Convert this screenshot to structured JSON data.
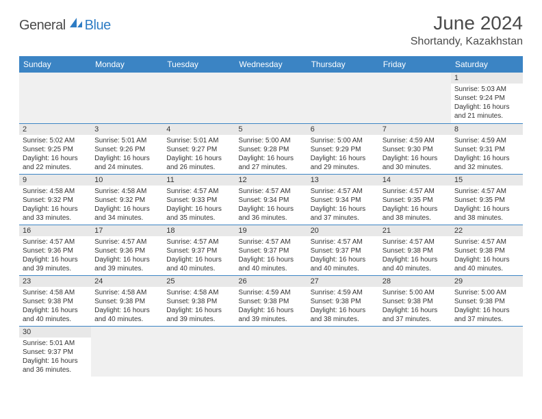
{
  "brand": {
    "part1": "General",
    "part2": "Blue"
  },
  "title": "June 2024",
  "location": "Shortandy, Kazakhstan",
  "colors": {
    "header_bg": "#3b84c4",
    "header_text": "#ffffff",
    "daynum_bg": "#e8e8e8",
    "border": "#3b84c4",
    "brand_gray": "#4a4a4a",
    "brand_blue": "#2e7cc4"
  },
  "weekdays": [
    "Sunday",
    "Monday",
    "Tuesday",
    "Wednesday",
    "Thursday",
    "Friday",
    "Saturday"
  ],
  "calendar": {
    "first_weekday_index": 6,
    "num_days": 30,
    "days": [
      {
        "n": 1,
        "sunrise": "5:03 AM",
        "sunset": "9:24 PM",
        "daylight": "16 hours and 21 minutes."
      },
      {
        "n": 2,
        "sunrise": "5:02 AM",
        "sunset": "9:25 PM",
        "daylight": "16 hours and 22 minutes."
      },
      {
        "n": 3,
        "sunrise": "5:01 AM",
        "sunset": "9:26 PM",
        "daylight": "16 hours and 24 minutes."
      },
      {
        "n": 4,
        "sunrise": "5:01 AM",
        "sunset": "9:27 PM",
        "daylight": "16 hours and 26 minutes."
      },
      {
        "n": 5,
        "sunrise": "5:00 AM",
        "sunset": "9:28 PM",
        "daylight": "16 hours and 27 minutes."
      },
      {
        "n": 6,
        "sunrise": "5:00 AM",
        "sunset": "9:29 PM",
        "daylight": "16 hours and 29 minutes."
      },
      {
        "n": 7,
        "sunrise": "4:59 AM",
        "sunset": "9:30 PM",
        "daylight": "16 hours and 30 minutes."
      },
      {
        "n": 8,
        "sunrise": "4:59 AM",
        "sunset": "9:31 PM",
        "daylight": "16 hours and 32 minutes."
      },
      {
        "n": 9,
        "sunrise": "4:58 AM",
        "sunset": "9:32 PM",
        "daylight": "16 hours and 33 minutes."
      },
      {
        "n": 10,
        "sunrise": "4:58 AM",
        "sunset": "9:32 PM",
        "daylight": "16 hours and 34 minutes."
      },
      {
        "n": 11,
        "sunrise": "4:57 AM",
        "sunset": "9:33 PM",
        "daylight": "16 hours and 35 minutes."
      },
      {
        "n": 12,
        "sunrise": "4:57 AM",
        "sunset": "9:34 PM",
        "daylight": "16 hours and 36 minutes."
      },
      {
        "n": 13,
        "sunrise": "4:57 AM",
        "sunset": "9:34 PM",
        "daylight": "16 hours and 37 minutes."
      },
      {
        "n": 14,
        "sunrise": "4:57 AM",
        "sunset": "9:35 PM",
        "daylight": "16 hours and 38 minutes."
      },
      {
        "n": 15,
        "sunrise": "4:57 AM",
        "sunset": "9:35 PM",
        "daylight": "16 hours and 38 minutes."
      },
      {
        "n": 16,
        "sunrise": "4:57 AM",
        "sunset": "9:36 PM",
        "daylight": "16 hours and 39 minutes."
      },
      {
        "n": 17,
        "sunrise": "4:57 AM",
        "sunset": "9:36 PM",
        "daylight": "16 hours and 39 minutes."
      },
      {
        "n": 18,
        "sunrise": "4:57 AM",
        "sunset": "9:37 PM",
        "daylight": "16 hours and 40 minutes."
      },
      {
        "n": 19,
        "sunrise": "4:57 AM",
        "sunset": "9:37 PM",
        "daylight": "16 hours and 40 minutes."
      },
      {
        "n": 20,
        "sunrise": "4:57 AM",
        "sunset": "9:37 PM",
        "daylight": "16 hours and 40 minutes."
      },
      {
        "n": 21,
        "sunrise": "4:57 AM",
        "sunset": "9:38 PM",
        "daylight": "16 hours and 40 minutes."
      },
      {
        "n": 22,
        "sunrise": "4:57 AM",
        "sunset": "9:38 PM",
        "daylight": "16 hours and 40 minutes."
      },
      {
        "n": 23,
        "sunrise": "4:58 AM",
        "sunset": "9:38 PM",
        "daylight": "16 hours and 40 minutes."
      },
      {
        "n": 24,
        "sunrise": "4:58 AM",
        "sunset": "9:38 PM",
        "daylight": "16 hours and 40 minutes."
      },
      {
        "n": 25,
        "sunrise": "4:58 AM",
        "sunset": "9:38 PM",
        "daylight": "16 hours and 39 minutes."
      },
      {
        "n": 26,
        "sunrise": "4:59 AM",
        "sunset": "9:38 PM",
        "daylight": "16 hours and 39 minutes."
      },
      {
        "n": 27,
        "sunrise": "4:59 AM",
        "sunset": "9:38 PM",
        "daylight": "16 hours and 38 minutes."
      },
      {
        "n": 28,
        "sunrise": "5:00 AM",
        "sunset": "9:38 PM",
        "daylight": "16 hours and 37 minutes."
      },
      {
        "n": 29,
        "sunrise": "5:00 AM",
        "sunset": "9:38 PM",
        "daylight": "16 hours and 37 minutes."
      },
      {
        "n": 30,
        "sunrise": "5:01 AM",
        "sunset": "9:37 PM",
        "daylight": "16 hours and 36 minutes."
      }
    ]
  },
  "labels": {
    "sunrise": "Sunrise:",
    "sunset": "Sunset:",
    "daylight": "Daylight:"
  }
}
